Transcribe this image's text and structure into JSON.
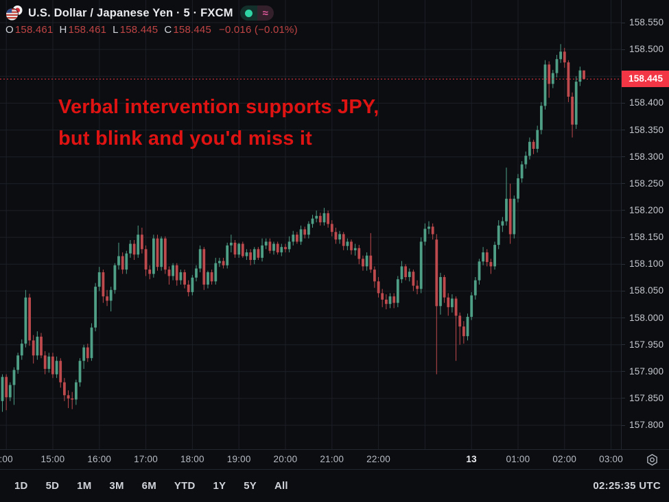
{
  "header": {
    "title": "U.S. Dollar / Japanese Yen · 5 · FXCM",
    "flag_icon": "usd-jpy-pair-flag",
    "status": {
      "dot_color": "#2fd5a5",
      "delay_symbol": "≈",
      "delay_color": "#df5a9c"
    },
    "ohlc": {
      "o_label": "O",
      "o_value": "158.461",
      "h_label": "H",
      "h_value": "158.461",
      "l_label": "L",
      "l_value": "158.445",
      "c_label": "C",
      "c_value": "158.445",
      "change": "−0.016 (−0.01%)"
    }
  },
  "annotation": {
    "line1": "Verbal intervention supports JPY,",
    "line2": "but blink and you'd miss it",
    "color": "#e01313"
  },
  "price_axis": {
    "labels": [
      158.55,
      158.5,
      158.4,
      158.35,
      158.3,
      158.25,
      158.2,
      158.15,
      158.1,
      158.05,
      158.0,
      157.95,
      157.9,
      157.85,
      157.8
    ],
    "last_price_tag": "158.445",
    "tag_color": "#f23645"
  },
  "time_axis": {
    "marks": [
      {
        "label": ":00",
        "i": 1
      },
      {
        "label": "15:00",
        "i": 13
      },
      {
        "label": "16:00",
        "i": 25
      },
      {
        "label": "17:00",
        "i": 37
      },
      {
        "label": "18:00",
        "i": 49
      },
      {
        "label": "19:00",
        "i": 61
      },
      {
        "label": "20:00",
        "i": 73
      },
      {
        "label": "21:00",
        "i": 85
      },
      {
        "label": "22:00",
        "i": 97
      },
      {
        "label": "",
        "i": 109
      },
      {
        "label": "13",
        "i": 121,
        "bold": true
      },
      {
        "label": "01:00",
        "i": 133
      },
      {
        "label": "02:00",
        "i": 145
      },
      {
        "label": "03:00",
        "i": 157
      }
    ]
  },
  "toolbar": {
    "ranges": [
      "1D",
      "5D",
      "1M",
      "3M",
      "6M",
      "YTD",
      "1Y",
      "5Y",
      "All"
    ],
    "clock": "02:25:35 UTC"
  },
  "chart_data": {
    "type": "candlestick",
    "symbol": "USD/JPY",
    "interval_minutes": 5,
    "exchange": "FXCM",
    "title": "U.S. Dollar / Japanese Yen · 5 · FXCM",
    "start_time": "13:55",
    "step_minutes": 5,
    "price_min": 157.8,
    "price_max": 158.55,
    "grid_step": 0.05,
    "last_price": 158.445,
    "up_color": "#4f9e86",
    "down_color": "#bf4a4e",
    "grid_color": "#1c2027",
    "candles": [
      [
        157.845,
        157.895,
        157.825,
        157.89
      ],
      [
        157.89,
        157.895,
        157.828,
        157.852
      ],
      [
        157.852,
        157.88,
        157.845,
        157.875
      ],
      [
        157.875,
        157.908,
        157.838,
        157.903
      ],
      [
        157.903,
        157.935,
        157.896,
        157.93
      ],
      [
        157.93,
        157.96,
        157.922,
        157.952
      ],
      [
        157.952,
        158.052,
        157.945,
        158.038
      ],
      [
        158.038,
        158.045,
        157.948,
        157.958
      ],
      [
        157.958,
        157.968,
        157.915,
        157.93
      ],
      [
        157.93,
        157.975,
        157.922,
        157.965
      ],
      [
        157.965,
        157.972,
        157.925,
        157.93
      ],
      [
        157.93,
        157.938,
        157.895,
        157.905
      ],
      [
        157.905,
        157.935,
        157.898,
        157.928
      ],
      [
        157.928,
        157.935,
        157.888,
        157.895
      ],
      [
        157.895,
        157.928,
        157.888,
        157.92
      ],
      [
        157.92,
        157.925,
        157.87,
        157.88
      ],
      [
        157.88,
        157.888,
        157.845,
        157.856
      ],
      [
        157.856,
        157.865,
        157.832,
        157.85
      ],
      [
        157.85,
        157.862,
        157.83,
        157.848
      ],
      [
        157.848,
        157.885,
        157.838,
        157.88
      ],
      [
        157.88,
        157.925,
        157.872,
        157.92
      ],
      [
        157.92,
        157.95,
        157.905,
        157.945
      ],
      [
        157.945,
        157.952,
        157.918,
        157.925
      ],
      [
        157.925,
        157.99,
        157.92,
        157.982
      ],
      [
        157.982,
        158.065,
        157.975,
        158.058
      ],
      [
        158.058,
        158.095,
        158.05,
        158.085
      ],
      [
        158.085,
        158.09,
        158.028,
        158.04
      ],
      [
        158.04,
        158.052,
        158.022,
        158.032
      ],
      [
        158.032,
        158.058,
        158.012,
        158.052
      ],
      [
        158.052,
        158.102,
        158.045,
        158.098
      ],
      [
        158.098,
        158.14,
        158.09,
        158.115
      ],
      [
        158.115,
        158.122,
        158.082,
        158.09
      ],
      [
        158.09,
        158.125,
        158.082,
        158.12
      ],
      [
        158.12,
        158.145,
        158.112,
        158.138
      ],
      [
        158.138,
        158.145,
        158.108,
        158.118
      ],
      [
        158.118,
        158.172,
        158.112,
        158.155
      ],
      [
        158.155,
        158.168,
        158.12,
        158.128
      ],
      [
        158.128,
        158.135,
        158.078,
        158.09
      ],
      [
        158.09,
        158.098,
        158.072,
        158.082
      ],
      [
        158.082,
        158.155,
        158.075,
        158.148
      ],
      [
        158.148,
        158.155,
        158.088,
        158.095
      ],
      [
        158.095,
        158.152,
        158.088,
        158.148
      ],
      [
        158.148,
        158.152,
        158.082,
        158.09
      ],
      [
        158.09,
        158.096,
        158.062,
        158.078
      ],
      [
        158.078,
        158.102,
        158.07,
        158.098
      ],
      [
        158.098,
        158.102,
        158.06,
        158.07
      ],
      [
        158.07,
        158.09,
        158.062,
        158.085
      ],
      [
        158.085,
        158.09,
        158.055,
        158.062
      ],
      [
        158.062,
        158.07,
        158.04,
        158.048
      ],
      [
        158.048,
        158.08,
        158.042,
        158.075
      ],
      [
        158.075,
        158.098,
        158.068,
        158.092
      ],
      [
        158.092,
        158.135,
        158.085,
        158.128
      ],
      [
        158.128,
        158.132,
        158.052,
        158.062
      ],
      [
        158.062,
        158.088,
        158.055,
        158.085
      ],
      [
        158.085,
        158.09,
        158.062,
        158.068
      ],
      [
        158.068,
        158.112,
        158.062,
        158.102
      ],
      [
        158.102,
        158.112,
        158.095,
        158.106
      ],
      [
        158.106,
        158.112,
        158.092,
        158.098
      ],
      [
        158.098,
        158.14,
        158.092,
        158.135
      ],
      [
        158.135,
        158.155,
        158.122,
        158.14
      ],
      [
        158.14,
        158.145,
        158.112,
        158.118
      ],
      [
        158.118,
        158.14,
        158.112,
        158.138
      ],
      [
        158.138,
        158.142,
        158.112,
        158.115
      ],
      [
        158.115,
        158.128,
        158.108,
        158.122
      ],
      [
        158.122,
        158.128,
        158.098,
        158.108
      ],
      [
        158.108,
        158.132,
        158.1,
        158.128
      ],
      [
        158.128,
        158.132,
        158.108,
        158.112
      ],
      [
        158.112,
        158.148,
        158.105,
        158.135
      ],
      [
        158.135,
        158.148,
        158.128,
        158.142
      ],
      [
        158.142,
        158.148,
        158.12,
        158.125
      ],
      [
        158.125,
        158.142,
        158.118,
        158.138
      ],
      [
        158.138,
        158.142,
        158.118,
        158.122
      ],
      [
        158.122,
        158.138,
        158.115,
        158.132
      ],
      [
        158.132,
        158.138,
        158.122,
        158.128
      ],
      [
        158.128,
        158.152,
        158.122,
        158.142
      ],
      [
        158.142,
        158.162,
        158.135,
        158.155
      ],
      [
        158.155,
        158.16,
        158.138,
        158.142
      ],
      [
        158.142,
        158.172,
        158.136,
        158.165
      ],
      [
        158.165,
        158.17,
        158.148,
        158.155
      ],
      [
        158.155,
        158.18,
        158.148,
        158.175
      ],
      [
        158.175,
        158.192,
        158.168,
        158.185
      ],
      [
        158.185,
        158.2,
        158.178,
        158.19
      ],
      [
        158.19,
        158.196,
        158.172,
        158.178
      ],
      [
        158.178,
        158.205,
        158.172,
        158.195
      ],
      [
        158.195,
        158.2,
        158.168,
        158.175
      ],
      [
        158.175,
        158.182,
        158.152,
        158.16
      ],
      [
        158.16,
        158.168,
        158.138,
        158.146
      ],
      [
        158.146,
        158.162,
        158.138,
        158.156
      ],
      [
        158.156,
        158.16,
        158.126,
        158.134
      ],
      [
        158.134,
        158.148,
        158.126,
        158.142
      ],
      [
        158.142,
        158.146,
        158.118,
        158.126
      ],
      [
        158.126,
        158.138,
        158.116,
        158.13
      ],
      [
        158.13,
        158.136,
        158.1,
        158.11
      ],
      [
        158.11,
        158.116,
        158.088,
        158.096
      ],
      [
        158.096,
        158.122,
        158.088,
        158.116
      ],
      [
        158.116,
        158.158,
        158.084,
        158.09
      ],
      [
        158.09,
        158.096,
        158.056,
        158.068
      ],
      [
        158.068,
        158.076,
        158.038,
        158.046
      ],
      [
        158.046,
        158.054,
        158.02,
        158.034
      ],
      [
        158.034,
        158.044,
        158.016,
        158.026
      ],
      [
        158.026,
        158.046,
        158.018,
        158.04
      ],
      [
        158.04,
        158.046,
        158.018,
        158.028
      ],
      [
        158.028,
        158.078,
        158.02,
        158.072
      ],
      [
        158.072,
        158.106,
        158.065,
        158.096
      ],
      [
        158.096,
        158.1,
        158.07,
        158.076
      ],
      [
        158.076,
        158.092,
        158.068,
        158.086
      ],
      [
        158.086,
        158.09,
        158.05,
        158.06
      ],
      [
        158.06,
        158.07,
        158.044,
        158.054
      ],
      [
        158.054,
        158.15,
        158.046,
        158.142
      ],
      [
        158.142,
        158.176,
        158.135,
        158.166
      ],
      [
        158.166,
        158.18,
        158.156,
        158.17
      ],
      [
        158.17,
        158.176,
        158.146,
        158.156
      ],
      [
        158.146,
        158.156,
        157.895,
        158.022
      ],
      [
        158.022,
        158.084,
        158.006,
        158.076
      ],
      [
        158.076,
        158.08,
        158.028,
        158.038
      ],
      [
        158.038,
        158.046,
        158.004,
        158.02
      ],
      [
        158.02,
        158.044,
        158.01,
        158.036
      ],
      [
        158.036,
        158.04,
        157.92,
        158.004
      ],
      [
        158.004,
        158.01,
        157.95,
        157.984
      ],
      [
        157.984,
        157.994,
        157.952,
        157.966
      ],
      [
        157.966,
        158.008,
        157.958,
        158.002
      ],
      [
        158.002,
        158.048,
        157.996,
        158.042
      ],
      [
        158.042,
        158.076,
        158.034,
        158.07
      ],
      [
        158.07,
        158.11,
        158.062,
        158.105
      ],
      [
        158.105,
        158.132,
        158.098,
        158.122
      ],
      [
        158.122,
        158.128,
        158.096,
        158.104
      ],
      [
        158.104,
        158.11,
        158.082,
        158.096
      ],
      [
        158.096,
        158.142,
        158.09,
        158.136
      ],
      [
        158.136,
        158.182,
        158.128,
        158.172
      ],
      [
        158.172,
        158.188,
        158.16,
        158.18
      ],
      [
        158.18,
        158.28,
        158.172,
        158.222
      ],
      [
        158.222,
        158.25,
        158.138,
        158.156
      ],
      [
        158.156,
        158.228,
        158.148,
        158.222
      ],
      [
        158.222,
        158.268,
        158.215,
        158.26
      ],
      [
        158.26,
        158.292,
        158.252,
        158.286
      ],
      [
        158.286,
        158.31,
        158.278,
        158.302
      ],
      [
        158.302,
        158.336,
        158.295,
        158.328
      ],
      [
        158.328,
        158.332,
        158.305,
        158.315
      ],
      [
        158.315,
        158.358,
        158.308,
        158.35
      ],
      [
        158.35,
        158.402,
        158.342,
        158.395
      ],
      [
        158.395,
        158.48,
        158.388,
        158.472
      ],
      [
        158.472,
        158.478,
        158.41,
        158.436
      ],
      [
        158.436,
        158.462,
        158.428,
        158.456
      ],
      [
        158.456,
        158.49,
        158.448,
        158.482
      ],
      [
        158.482,
        158.51,
        158.475,
        158.496
      ],
      [
        158.496,
        158.503,
        158.466,
        158.476
      ],
      [
        158.476,
        158.48,
        158.402,
        158.412
      ],
      [
        158.412,
        158.42,
        158.336,
        158.36
      ],
      [
        158.36,
        158.45,
        158.352,
        158.44
      ],
      [
        158.44,
        158.468,
        158.432,
        158.461
      ],
      [
        158.461,
        158.461,
        158.445,
        158.445
      ]
    ]
  }
}
